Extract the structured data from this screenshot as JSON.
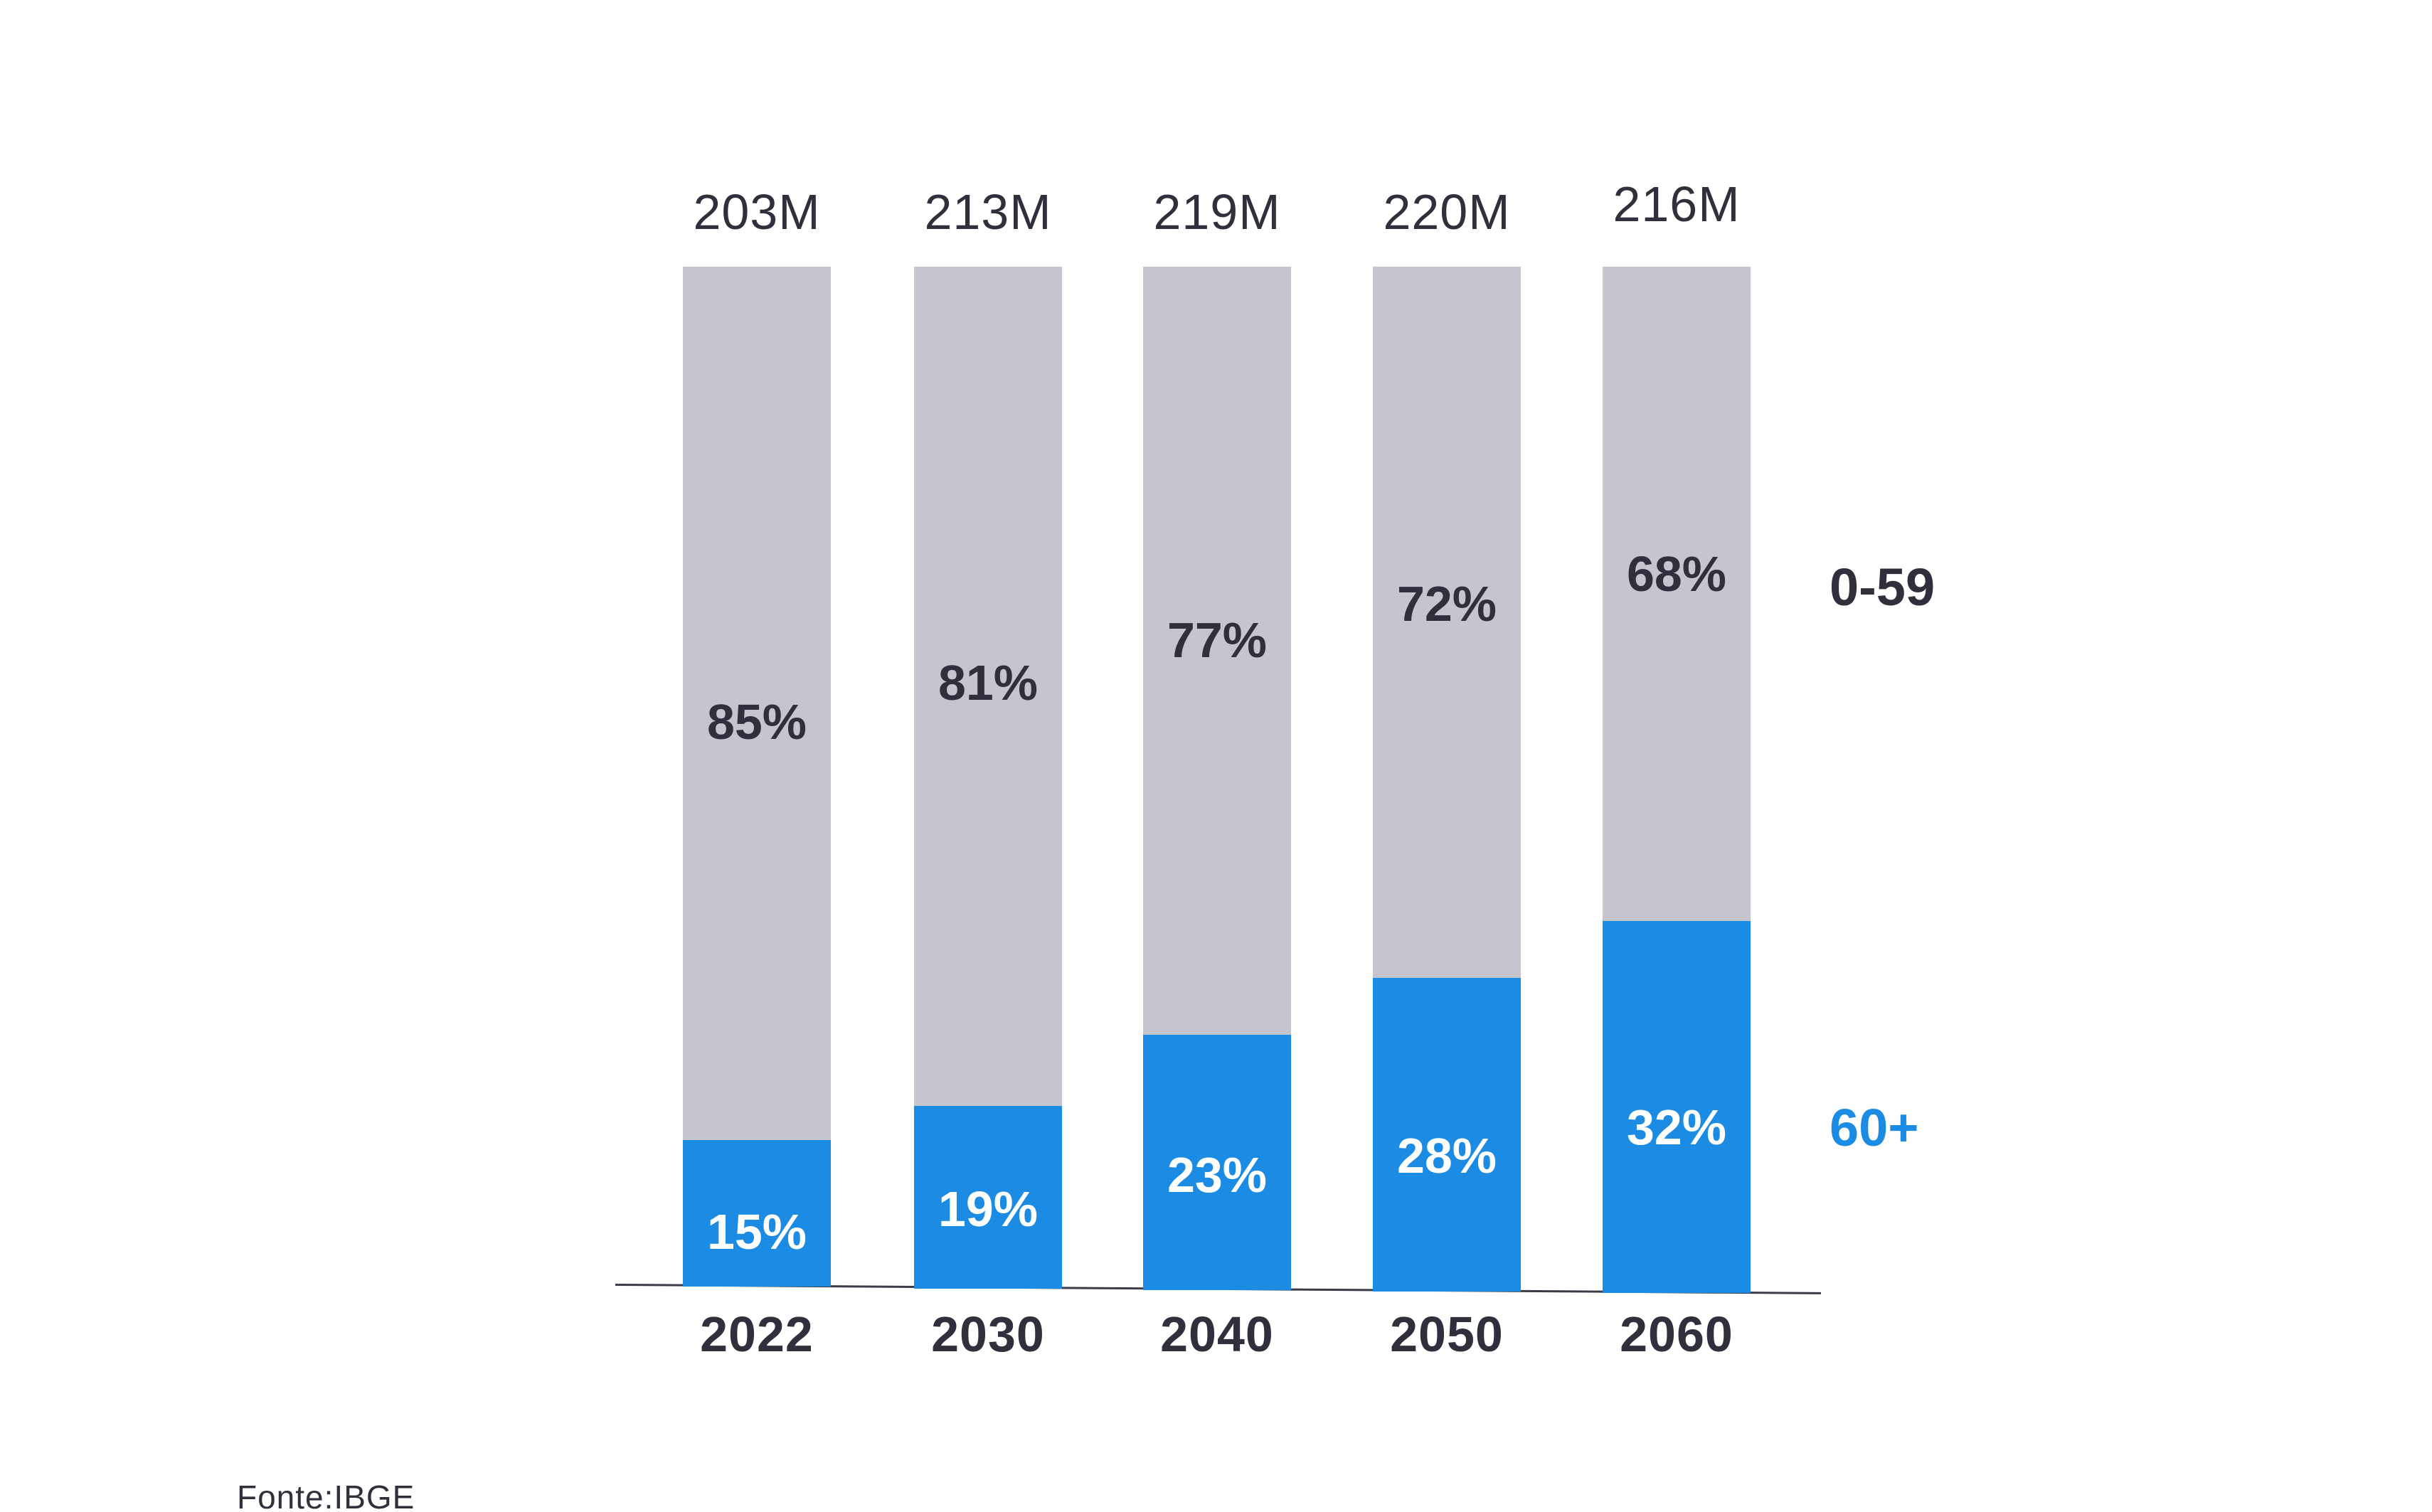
{
  "chart_data": {
    "type": "bar",
    "stacked": true,
    "categories": [
      "2022",
      "2030",
      "2040",
      "2050",
      "2060"
    ],
    "totals": [
      "203M",
      "213M",
      "219M",
      "220M",
      "216M"
    ],
    "series": [
      {
        "name": "60+",
        "values": [
          15,
          19,
          23,
          28,
          32
        ],
        "color": "#1B8BE3",
        "label_color": "#ffffff"
      },
      {
        "name": "0-59",
        "values": [
          85,
          81,
          77,
          72,
          68
        ],
        "color": "#C5C5CE",
        "label_color": "#2F303B"
      }
    ],
    "value_suffix": "%",
    "title": "",
    "xlabel": "",
    "ylabel": "",
    "grid": false,
    "legend_position": "right",
    "legend": [
      {
        "label": "0-59",
        "color": "#2F303B"
      },
      {
        "label": "60+",
        "color": "#1B8BE3"
      }
    ]
  },
  "source": "Fonte:IBGE",
  "colors": {
    "bar_older": "#1B8BE3",
    "bar_younger": "#C5C5CE",
    "text_dark": "#2F303B",
    "axis_line": "#3B3C47",
    "background": "#ffffff"
  }
}
